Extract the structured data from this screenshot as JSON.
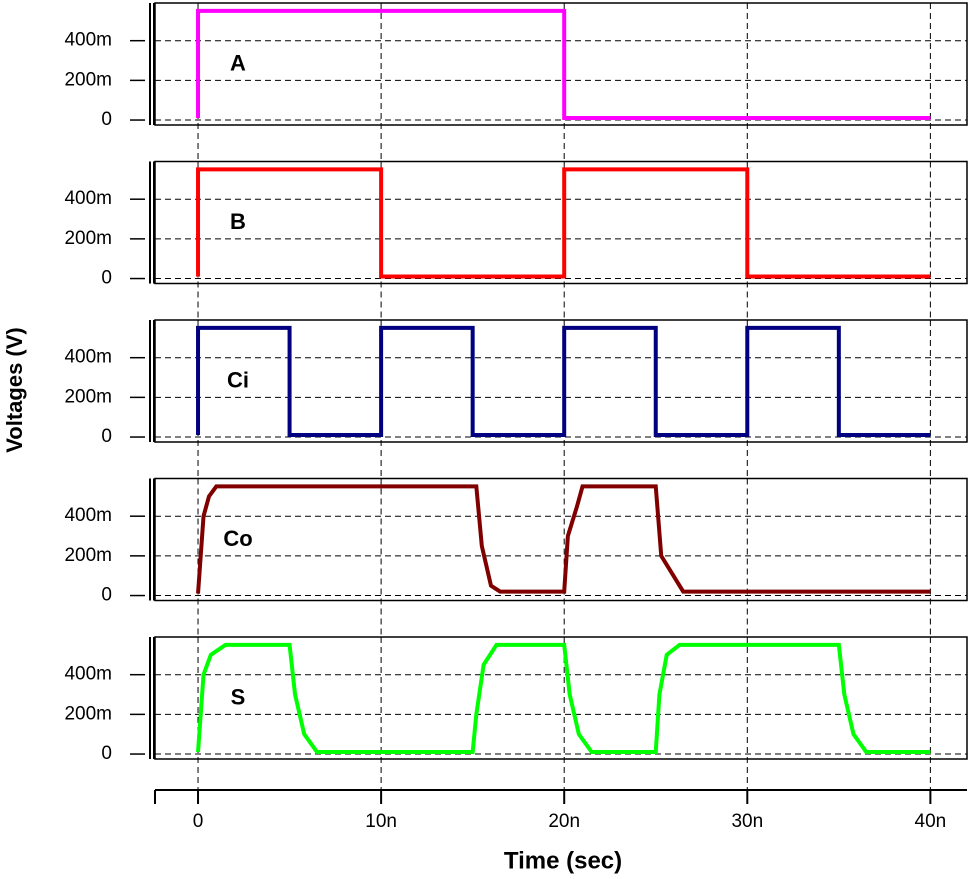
{
  "ylabel": "Voltages (V)",
  "xlabel": "Time (sec)",
  "chart_data": [
    {
      "type": "line",
      "annotation": "A",
      "series": [
        {
          "color": "#ff00ff",
          "x": [
            0,
            0,
            2e-08,
            2e-08,
            4e-08
          ],
          "values": [
            0.01,
            0.55,
            0.55,
            0.01,
            0.01
          ]
        }
      ],
      "xlim": [
        -2.35e-09,
        4.2e-08
      ],
      "ylim": [
        -0.025,
        0.59
      ],
      "grid": true,
      "xticks": [
        {
          "value": 0,
          "label": "0"
        },
        {
          "value": 1e-08,
          "label": "10n"
        },
        {
          "value": 2e-08,
          "label": "20n"
        },
        {
          "value": 3e-08,
          "label": "30n"
        },
        {
          "value": 4e-08,
          "label": "40n"
        }
      ],
      "yticks": [
        0,
        {
          "value": 0.2,
          "label": "200m"
        },
        {
          "value": 0.4,
          "label": "400m"
        }
      ]
    },
    {
      "type": "line",
      "annotation": "B",
      "series": [
        {
          "color": "#ff0000",
          "x": [
            0,
            0,
            1e-08,
            1e-08,
            2e-08,
            2e-08,
            3e-08,
            3e-08,
            4e-08
          ],
          "values": [
            0.01,
            0.55,
            0.55,
            0.01,
            0.01,
            0.55,
            0.55,
            0.01,
            0.01
          ]
        }
      ],
      "xlim": [
        -2.35e-09,
        4.2e-08
      ],
      "ylim": [
        -0.025,
        0.59
      ],
      "grid": true,
      "xticks": [
        {
          "value": 0,
          "label": "0"
        },
        {
          "value": 1e-08,
          "label": "10n"
        },
        {
          "value": 2e-08,
          "label": "20n"
        },
        {
          "value": 3e-08,
          "label": "30n"
        },
        {
          "value": 4e-08,
          "label": "40n"
        }
      ],
      "yticks": [
        0,
        {
          "value": 0.2,
          "label": "200m"
        },
        {
          "value": 0.4,
          "label": "400m"
        }
      ]
    },
    {
      "type": "line",
      "annotation": "Ci",
      "series": [
        {
          "color": "#000080",
          "x": [
            0,
            0,
            5e-09,
            5e-09,
            1e-08,
            1e-08,
            1.5e-08,
            1.5e-08,
            2e-08,
            2e-08,
            2.5e-08,
            2.5e-08,
            3e-08,
            3e-08,
            3.5e-08,
            3.5e-08,
            4e-08
          ],
          "values": [
            0.01,
            0.55,
            0.55,
            0.01,
            0.01,
            0.55,
            0.55,
            0.01,
            0.01,
            0.55,
            0.55,
            0.01,
            0.01,
            0.55,
            0.55,
            0.01,
            0.01
          ]
        }
      ],
      "xlim": [
        -2.35e-09,
        4.2e-08
      ],
      "ylim": [
        -0.025,
        0.59
      ],
      "grid": true,
      "xticks": [
        {
          "value": 0,
          "label": "0"
        },
        {
          "value": 1e-08,
          "label": "10n"
        },
        {
          "value": 2e-08,
          "label": "20n"
        },
        {
          "value": 3e-08,
          "label": "30n"
        },
        {
          "value": 4e-08,
          "label": "40n"
        }
      ],
      "yticks": [
        0,
        {
          "value": 0.2,
          "label": "200m"
        },
        {
          "value": 0.4,
          "label": "400m"
        }
      ]
    },
    {
      "type": "line",
      "annotation": "Co",
      "series": [
        {
          "color": "#800000",
          "x": [
            0,
            3e-10,
            6e-10,
            1e-09,
            1.52e-08,
            1.55e-08,
            1.6e-08,
            1.65e-08,
            2e-08,
            2.02e-08,
            2.07e-08,
            2.1e-08,
            2.5e-08,
            2.53e-08,
            2.65e-08,
            4e-08
          ],
          "values": [
            0.01,
            0.4,
            0.5,
            0.55,
            0.55,
            0.25,
            0.05,
            0.02,
            0.02,
            0.3,
            0.45,
            0.55,
            0.55,
            0.2,
            0.02,
            0.02
          ]
        }
      ],
      "xlim": [
        -2.35e-09,
        4.2e-08
      ],
      "ylim": [
        -0.025,
        0.59
      ],
      "grid": true,
      "xticks": [
        {
          "value": 0,
          "label": "0"
        },
        {
          "value": 1e-08,
          "label": "10n"
        },
        {
          "value": 2e-08,
          "label": "20n"
        },
        {
          "value": 3e-08,
          "label": "30n"
        },
        {
          "value": 4e-08,
          "label": "40n"
        }
      ],
      "yticks": [
        0,
        {
          "value": 0.2,
          "label": "200m"
        },
        {
          "value": 0.4,
          "label": "400m"
        }
      ]
    },
    {
      "type": "line",
      "annotation": "S",
      "series": [
        {
          "color": "#00ff00",
          "x": [
            0,
            3e-10,
            7e-10,
            1.5e-09,
            5e-09,
            5.3e-09,
            5.8e-09,
            6.5e-09,
            1.5e-08,
            1.52e-08,
            1.56e-08,
            1.63e-08,
            2e-08,
            2.03e-08,
            2.08e-08,
            2.15e-08,
            2.5e-08,
            2.52e-08,
            2.56e-08,
            2.63e-08,
            3.5e-08,
            3.53e-08,
            3.58e-08,
            3.65e-08,
            4e-08
          ],
          "values": [
            0.01,
            0.4,
            0.5,
            0.55,
            0.55,
            0.3,
            0.1,
            0.01,
            0.01,
            0.2,
            0.45,
            0.55,
            0.55,
            0.3,
            0.1,
            0.01,
            0.01,
            0.3,
            0.5,
            0.55,
            0.55,
            0.3,
            0.1,
            0.01,
            0.01
          ]
        }
      ],
      "xlim": [
        -2.35e-09,
        4.2e-08
      ],
      "ylim": [
        -0.025,
        0.59
      ],
      "grid": true,
      "xticks": [
        {
          "value": 0,
          "label": "0"
        },
        {
          "value": 1e-08,
          "label": "10n"
        },
        {
          "value": 2e-08,
          "label": "20n"
        },
        {
          "value": 3e-08,
          "label": "30n"
        },
        {
          "value": 4e-08,
          "label": "40n"
        }
      ],
      "yticks": [
        0,
        {
          "value": 0.2,
          "label": "200m"
        },
        {
          "value": 0.4,
          "label": "400m"
        }
      ]
    }
  ]
}
